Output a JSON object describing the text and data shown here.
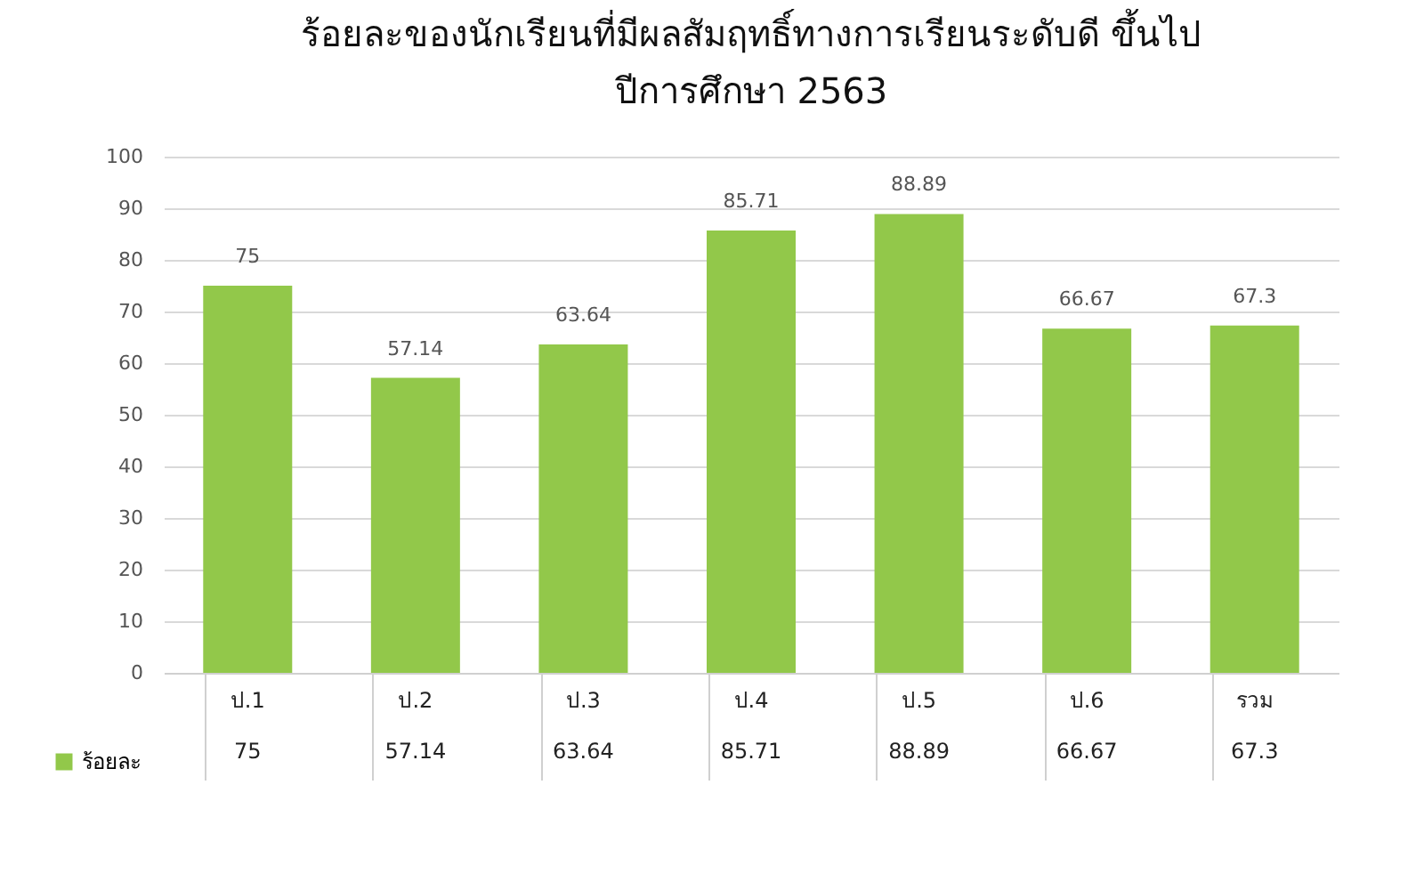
{
  "chart_data": {
    "type": "bar",
    "title": "ร้อยละของนักเรียนที่มีผลสัมฤทธิ์ทางการเรียนระดับดี ขึ้นไป",
    "subtitle": "ปีการศึกษา 2563",
    "categories": [
      "ป.1",
      "ป.2",
      "ป.3",
      "ป.4",
      "ป.5",
      "ป.6",
      "รวม"
    ],
    "series": [
      {
        "name": "ร้อยละ",
        "color": "#92c84a",
        "values": [
          75,
          57.14,
          63.64,
          85.71,
          88.89,
          66.67,
          67.3
        ],
        "value_labels": [
          "75",
          "57.14",
          "63.64",
          "85.71",
          "88.89",
          "66.67",
          "67.3"
        ]
      }
    ],
    "ylim": [
      0,
      100
    ],
    "yticks": [
      0,
      10,
      20,
      30,
      40,
      50,
      60,
      70,
      80,
      90,
      100
    ],
    "grid": "y",
    "data_labels": true,
    "legend": "bottom left"
  }
}
